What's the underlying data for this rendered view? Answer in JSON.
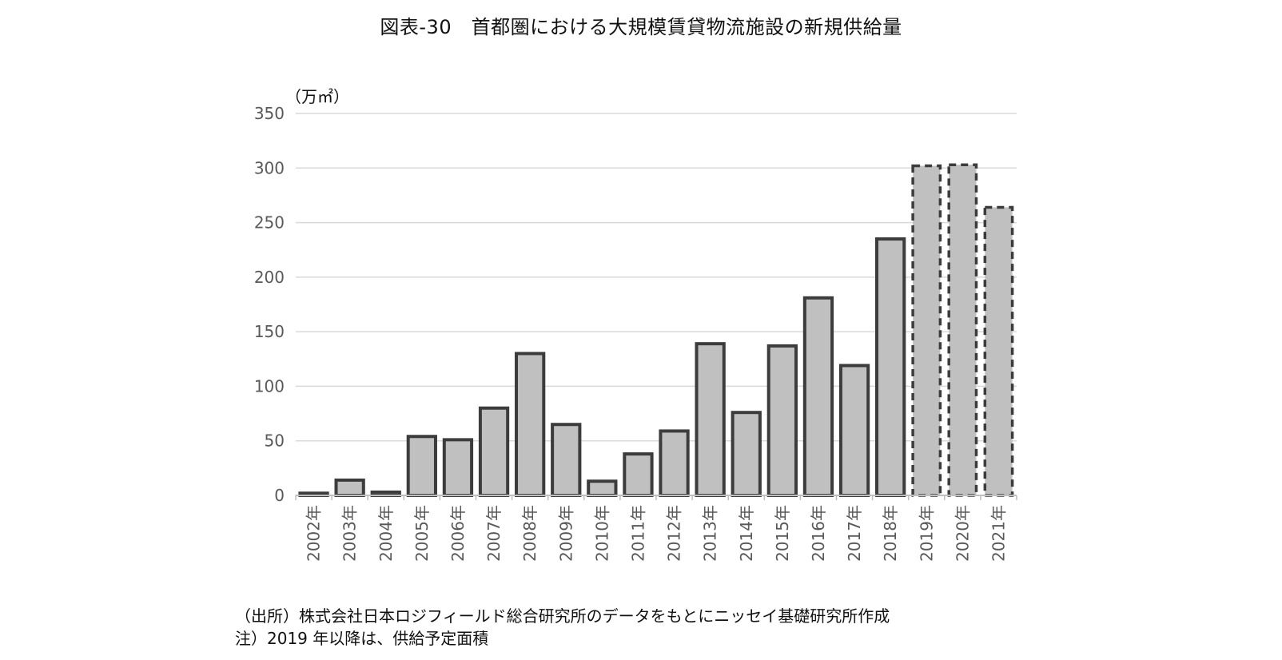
{
  "chart_data": {
    "type": "bar",
    "title": "図表-30　首都圏における大規模賃貸物流施設の新規供給量",
    "unit_label": "（万㎡）",
    "xlabel": "",
    "ylabel": "",
    "ylim": [
      0,
      350
    ],
    "yticks": [
      "0",
      "50",
      "100",
      "150",
      "200",
      "250",
      "300",
      "350"
    ],
    "grid": true,
    "categories": [
      "2002年",
      "2003年",
      "2004年",
      "2005年",
      "2006年",
      "2007年",
      "2008年",
      "2009年",
      "2010年",
      "2011年",
      "2012年",
      "2013年",
      "2014年",
      "2015年",
      "2016年",
      "2017年",
      "2018年",
      "2019年",
      "2020年",
      "2021年"
    ],
    "values": [
      2,
      14,
      3,
      54,
      51,
      80,
      130,
      65,
      13,
      38,
      59,
      139,
      76,
      137,
      181,
      119,
      235,
      302,
      303,
      264
    ],
    "forecast": [
      false,
      false,
      false,
      false,
      false,
      false,
      false,
      false,
      false,
      false,
      false,
      false,
      false,
      false,
      false,
      false,
      false,
      true,
      true,
      true
    ],
    "colors": {
      "bar_fill": "#c0c0c0",
      "bar_stroke": "#3c3c3c",
      "grid": "#d9d9d9",
      "axis": "#bfbfbf",
      "text": "#595959"
    }
  },
  "notes": {
    "source": "（出所）株式会社日本ロジフィールド総合研究所のデータをもとにニッセイ基礎研究所作成",
    "note": "注）2019 年以降は、供給予定面積"
  }
}
